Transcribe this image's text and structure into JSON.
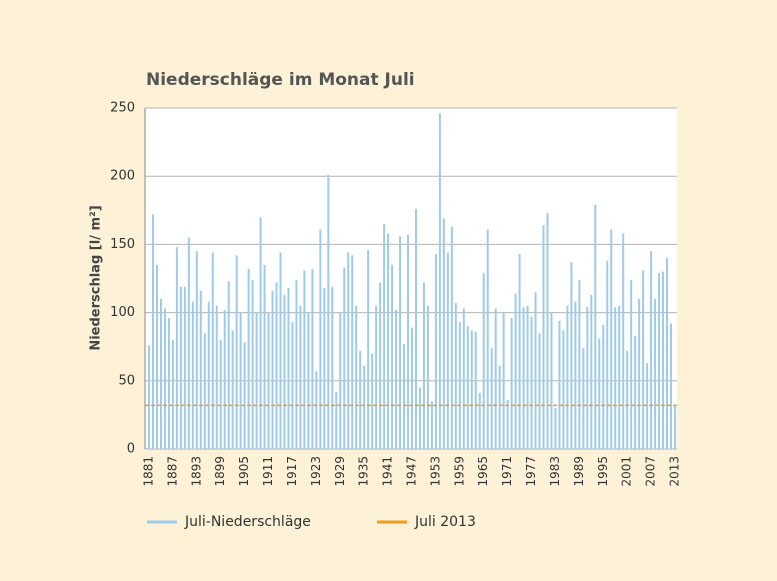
{
  "chart_data": {
    "type": "bar",
    "title": "Niederschläge im Monat Juli",
    "y_label": "Niederschlag [l/ m²]",
    "x": [
      1881,
      1882,
      1883,
      1884,
      1885,
      1886,
      1887,
      1888,
      1889,
      1890,
      1891,
      1892,
      1893,
      1894,
      1895,
      1896,
      1897,
      1898,
      1899,
      1900,
      1901,
      1902,
      1903,
      1904,
      1905,
      1906,
      1907,
      1908,
      1909,
      1910,
      1911,
      1912,
      1913,
      1914,
      1915,
      1916,
      1917,
      1918,
      1919,
      1920,
      1921,
      1922,
      1923,
      1924,
      1925,
      1926,
      1927,
      1928,
      1929,
      1930,
      1931,
      1932,
      1933,
      1934,
      1935,
      1936,
      1937,
      1938,
      1939,
      1940,
      1941,
      1942,
      1943,
      1944,
      1945,
      1946,
      1947,
      1948,
      1949,
      1950,
      1951,
      1952,
      1953,
      1954,
      1955,
      1956,
      1957,
      1958,
      1959,
      1960,
      1961,
      1962,
      1963,
      1964,
      1965,
      1966,
      1967,
      1968,
      1969,
      1970,
      1971,
      1972,
      1973,
      1974,
      1975,
      1976,
      1977,
      1978,
      1979,
      1980,
      1981,
      1982,
      1983,
      1984,
      1985,
      1986,
      1987,
      1988,
      1989,
      1990,
      1991,
      1992,
      1993,
      1994,
      1995,
      1996,
      1997,
      1998,
      1999,
      2000,
      2001,
      2002,
      2003,
      2004,
      2005,
      2006,
      2007,
      2008,
      2009,
      2010,
      2011,
      2012,
      2013
    ],
    "series": [
      {
        "name": "Juli-Niederschläge",
        "color": "#9fcbea",
        "values": [
          76,
          172,
          135,
          110,
          103,
          96,
          80,
          148,
          119,
          119,
          155,
          108,
          145,
          116,
          85,
          108,
          144,
          105,
          80,
          102,
          123,
          87,
          142,
          100,
          78,
          132,
          124,
          100,
          170,
          135,
          100,
          116,
          122,
          144,
          113,
          118,
          93,
          124,
          105,
          131,
          100,
          132,
          57,
          161,
          118,
          201,
          119,
          42,
          100,
          133,
          144,
          142,
          105,
          72,
          61,
          146,
          70,
          105,
          122,
          165,
          158,
          135,
          102,
          156,
          77,
          157,
          89,
          176,
          45,
          122,
          105,
          35,
          143,
          246,
          169,
          144,
          163,
          107,
          93,
          103,
          90,
          87,
          86,
          41,
          129,
          161,
          74,
          103,
          61,
          100,
          36,
          96,
          114,
          143,
          104,
          105,
          97,
          115,
          85,
          164,
          173,
          100,
          30,
          94,
          87,
          105,
          137,
          108,
          124,
          74,
          104,
          113,
          179,
          81,
          91,
          138,
          161,
          104,
          105,
          158,
          72,
          124,
          83,
          110,
          131,
          63,
          145,
          110,
          129,
          130,
          140,
          92,
          32
        ]
      }
    ],
    "lines": [
      {
        "name": "Juli 2013",
        "value": 32,
        "color": "#f29a1e",
        "style": "dashed"
      }
    ],
    "xlim": [
      1881,
      2013
    ],
    "xticks": [
      1881,
      1887,
      1893,
      1899,
      1905,
      1911,
      1917,
      1923,
      1929,
      1935,
      1941,
      1947,
      1953,
      1959,
      1965,
      1971,
      1977,
      1983,
      1989,
      1995,
      2001,
      2007,
      2013
    ],
    "ylim": [
      0,
      250
    ],
    "yticks": [
      0,
      50,
      100,
      150,
      200,
      250
    ],
    "grid": true
  }
}
